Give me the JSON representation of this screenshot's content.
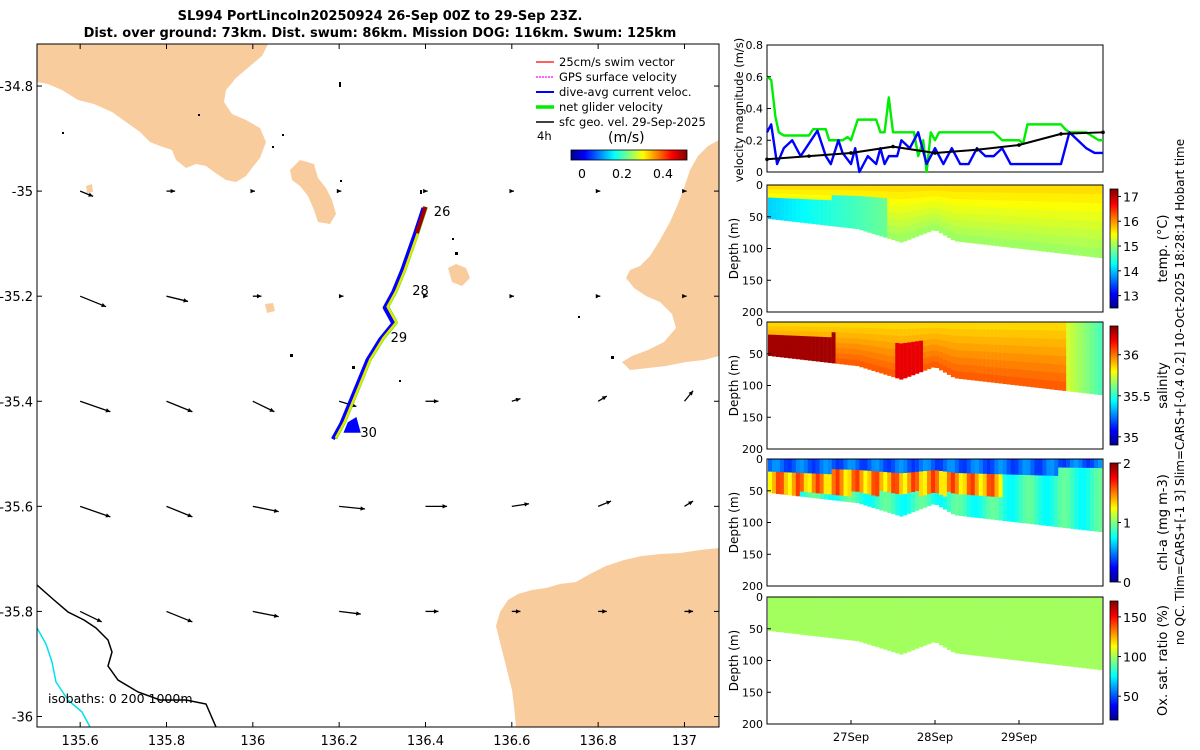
{
  "title": {
    "line1": "SL994 PortLincoln20250924 26-Sep 00Z to 29-Sep 23Z.",
    "line2": "Dist. over ground: 73km. Dist. swum: 86km. Mission DOG: 116km. Swum: 125km"
  },
  "colors": {
    "land": "#f9cc9d",
    "swim": "#ff0000",
    "gps": "#ff00ff",
    "dive": "#0000ff",
    "net": "#00ee00",
    "geo": "#000000",
    "iso0": "#000000",
    "iso200": "#00e0ee"
  },
  "chart_data": [
    {
      "type": "map",
      "xlim": [
        135.5,
        137.08
      ],
      "ylim": [
        -36.02,
        -34.72
      ],
      "xticks": [
        135.6,
        135.8,
        136,
        136.2,
        136.4,
        136.6,
        136.8,
        137
      ],
      "xtick_labels": [
        "135.6",
        "135.8",
        "136",
        "136.2",
        "136.4",
        "136.6",
        "136.8",
        "137"
      ],
      "yticks": [
        -34.8,
        -35,
        -35.2,
        -35.4,
        -35.6,
        -35.8,
        -36
      ],
      "ytick_labels": [
        "-34.8",
        "-35",
        "-35.2",
        "-35.4",
        "-35.6",
        "-35.8",
        "-36"
      ],
      "legend": [
        {
          "label": "25cm/s swim vector",
          "color": "#ff0000"
        },
        {
          "label": "GPS surface velocity",
          "color": "#ff00ff"
        },
        {
          "label": "dive-avg current veloc.",
          "color": "#0000ff"
        },
        {
          "label": "net glider velocity",
          "color": "#00ee00"
        },
        {
          "label": "sfc geo. vel. 29-Sep-2025",
          "color": "#000000"
        }
      ],
      "legend_extra": "4h",
      "colorbar": {
        "label": "(m/s)",
        "ticks": [
          "0",
          "0.2",
          "0.4"
        ],
        "range": [
          0,
          0.5
        ]
      },
      "isobath_label": "isobaths: 0   200  1000m",
      "track": [
        [
          136.4,
          -35.03
        ],
        [
          136.38,
          -35.08
        ],
        [
          136.35,
          -35.15
        ],
        [
          136.33,
          -35.19
        ],
        [
          136.31,
          -35.22
        ],
        [
          136.33,
          -35.25
        ],
        [
          136.3,
          -35.28
        ],
        [
          136.27,
          -35.32
        ],
        [
          136.25,
          -35.36
        ],
        [
          136.23,
          -35.4
        ],
        [
          136.21,
          -35.44
        ],
        [
          136.19,
          -35.47
        ]
      ],
      "day_labels": [
        {
          "text": "26",
          "lon": 136.41,
          "lat": -35.04
        },
        {
          "text": "28",
          "lon": 136.36,
          "lat": -35.19
        },
        {
          "text": "29",
          "lon": 136.31,
          "lat": -35.28
        },
        {
          "text": "30",
          "lon": 136.24,
          "lat": -35.46
        }
      ],
      "geo_vectors": {
        "lons": [
          135.6,
          135.8,
          136.0,
          136.2,
          136.4,
          136.6,
          136.8,
          137.0
        ],
        "lats": [
          -35.0,
          -35.2,
          -35.4,
          -35.6,
          -35.8
        ],
        "u_deg": [
          [
            0.03,
            0.02,
            0.005,
            0.005,
            0.005,
            0.005,
            0.005,
            0.005
          ],
          [
            0.06,
            0.05,
            0.02,
            0.01,
            0.005,
            0.005,
            0.005,
            0.005
          ],
          [
            0.07,
            0.06,
            0.05,
            0.04,
            0.03,
            0.02,
            0.02,
            0.02
          ],
          [
            0.07,
            0.06,
            0.06,
            0.06,
            0.05,
            0.04,
            0.03,
            0.02
          ],
          [
            0.05,
            0.06,
            0.06,
            0.05,
            0.03,
            0.02,
            0.02,
            0.02
          ]
        ],
        "v_deg": [
          [
            -0.01,
            0.0,
            0.0,
            0.0,
            0.0,
            0.0,
            0.0,
            0.0
          ],
          [
            -0.02,
            -0.01,
            0.0,
            0.0,
            0.0,
            0.0,
            0.0,
            0.0
          ],
          [
            -0.02,
            -0.02,
            -0.02,
            -0.01,
            0.0,
            0.005,
            0.01,
            0.02
          ],
          [
            -0.02,
            -0.02,
            -0.01,
            -0.005,
            0.0,
            0.005,
            0.01,
            0.01
          ],
          [
            -0.02,
            -0.02,
            -0.01,
            -0.005,
            0.0,
            0.0,
            0.0,
            0.0
          ]
        ]
      }
    },
    {
      "type": "line",
      "ylabel": "velocity magnitude (m/s)",
      "ylim": [
        0,
        0.8
      ],
      "yticks": [
        "0",
        "0.2",
        "0.4",
        "0.6",
        "0.8"
      ],
      "xlim": [
        0,
        4
      ],
      "series": [
        {
          "name": "net glider velocity",
          "color": "#00ee00",
          "x": [
            0,
            0.05,
            0.1,
            0.14,
            0.2,
            0.5,
            0.55,
            0.7,
            0.74,
            0.8,
            0.9,
            0.96,
            1.0,
            1.08,
            1.2,
            1.3,
            1.35,
            1.4,
            1.45,
            1.5,
            1.58,
            1.66,
            1.75,
            1.8,
            1.86,
            1.9,
            1.95,
            2.0,
            2.05,
            2.1,
            2.2,
            2.3,
            2.4,
            2.5,
            2.6,
            2.7,
            2.8,
            2.9,
            3.0,
            3.05,
            3.1,
            3.3,
            3.5,
            3.55,
            3.6,
            3.8,
            3.95,
            4.0
          ],
          "y": [
            0.6,
            0.58,
            0.35,
            0.25,
            0.23,
            0.23,
            0.27,
            0.27,
            0.2,
            0.2,
            0.2,
            0.22,
            0.2,
            0.33,
            0.33,
            0.33,
            0.25,
            0.25,
            0.47,
            0.25,
            0.25,
            0.25,
            0.25,
            0.1,
            0.2,
            0.0,
            0.25,
            0.2,
            0.25,
            0.25,
            0.25,
            0.25,
            0.25,
            0.25,
            0.25,
            0.25,
            0.2,
            0.2,
            0.2,
            0.18,
            0.3,
            0.3,
            0.3,
            0.27,
            0.25,
            0.25,
            0.2,
            0.2
          ]
        },
        {
          "name": "dive-avg current veloc.",
          "color": "#0000ff",
          "x": [
            0,
            0.05,
            0.12,
            0.2,
            0.3,
            0.4,
            0.5,
            0.6,
            0.65,
            0.7,
            0.76,
            0.85,
            0.9,
            1.0,
            1.05,
            1.1,
            1.2,
            1.3,
            1.35,
            1.4,
            1.45,
            1.55,
            1.6,
            1.7,
            1.8,
            1.9,
            2.0,
            2.1,
            2.2,
            2.3,
            2.4,
            2.5,
            2.6,
            2.7,
            2.8,
            2.9,
            3.0,
            3.1,
            3.2,
            3.3,
            3.4,
            3.5,
            3.55,
            3.6,
            3.7,
            3.8,
            3.9,
            4.0
          ],
          "y": [
            0.25,
            0.3,
            0.05,
            0.15,
            0.2,
            0.1,
            0.18,
            0.26,
            0.18,
            0.1,
            0.05,
            0.2,
            0.12,
            0.05,
            0.15,
            0.0,
            0.1,
            0.05,
            0.15,
            0.05,
            0.1,
            0.1,
            0.2,
            0.15,
            0.25,
            0.05,
            0.15,
            0.05,
            0.15,
            0.05,
            0.05,
            0.15,
            0.1,
            0.1,
            0.15,
            0.05,
            0.05,
            0.05,
            0.05,
            0.05,
            0.05,
            0.05,
            0.15,
            0.25,
            0.2,
            0.15,
            0.12,
            0.12
          ]
        },
        {
          "name": "surface",
          "color": "#000000",
          "x": [
            0,
            0.5,
            1.0,
            1.5,
            2.0,
            2.5,
            3.0,
            3.5,
            4.0
          ],
          "y": [
            0.08,
            0.1,
            0.12,
            0.16,
            0.12,
            0.14,
            0.17,
            0.24,
            0.25
          ]
        }
      ]
    },
    {
      "type": "heatmap",
      "variable": "temp. (°C)",
      "ylabel": "Depth (m)",
      "ylim": [
        200,
        0
      ],
      "yticks": [
        "0",
        "50",
        "100",
        "150",
        "200"
      ],
      "cticks": [
        "13",
        "14",
        "15",
        "16",
        "17"
      ],
      "crange": [
        12.5,
        17.3
      ],
      "surface_value": 15.7,
      "deep_value": 15.0,
      "upper_anomaly": 14.1
    },
    {
      "type": "heatmap",
      "variable": "salinity",
      "ylabel": "Depth (m)",
      "ylim": [
        200,
        0
      ],
      "yticks": [
        "0",
        "50",
        "100",
        "150",
        "200"
      ],
      "cticks": [
        "35",
        "35.5",
        "36"
      ],
      "crange": [
        34.9,
        36.35
      ],
      "surface_value": 35.85,
      "deep_value": 36.05,
      "upper_anomaly": 36.3
    },
    {
      "type": "heatmap",
      "variable": "chl-a (mg m-3)",
      "ylabel": "Depth (m)",
      "ylim": [
        200,
        0
      ],
      "yticks": [
        "0",
        "50",
        "100",
        "150",
        "200"
      ],
      "cticks": [
        "0",
        "1",
        "2"
      ],
      "crange": [
        0,
        2
      ],
      "surface_value": 0.5,
      "deep_value": 0.9,
      "upper_anomaly": 1.45
    },
    {
      "type": "heatmap",
      "variable": "Ox. sat. ratio (%)",
      "ylabel": "Depth (m)",
      "ylim": [
        200,
        0
      ],
      "yticks": [
        "0",
        "50",
        "100",
        "150",
        "200"
      ],
      "cticks": [
        "50",
        "100",
        "150"
      ],
      "crange": [
        20,
        170
      ],
      "surface_value": 100,
      "deep_value": 100,
      "upper_anomaly": 100
    }
  ],
  "time_axis": {
    "ticks": [
      "27Sep",
      "28Sep",
      "29Sep"
    ],
    "tick_days": [
      1,
      2,
      3
    ]
  },
  "side_label": "no QC. Tlim=CARS+[-1 3] Slim=CARS+[-0.4 0.2] 10-Oct-2025 18:28:14 Hobart time"
}
